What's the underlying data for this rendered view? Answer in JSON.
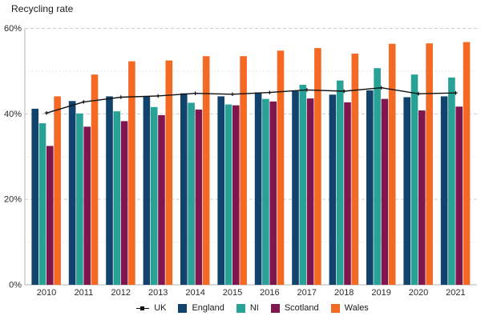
{
  "title": "Recycling rate",
  "chart_data": {
    "type": "bar",
    "title": "Recycling rate",
    "subtitle": "",
    "xlabel": "",
    "ylabel": "Recycling rate",
    "categories": [
      "2010",
      "2011",
      "2012",
      "2013",
      "2014",
      "2015",
      "2016",
      "2017",
      "2018",
      "2019",
      "2020",
      "2021"
    ],
    "series": [
      {
        "name": "England",
        "color": "#12436D",
        "values": [
          41.2,
          43.0,
          44.1,
          44.1,
          44.8,
          44.1,
          45.0,
          45.3,
          44.5,
          45.5,
          43.9,
          44.1
        ]
      },
      {
        "name": "NI",
        "color": "#28A197",
        "values": [
          37.8,
          40.1,
          40.6,
          41.6,
          42.6,
          42.2,
          43.5,
          46.8,
          47.8,
          50.7,
          49.2,
          48.5
        ]
      },
      {
        "name": "Scotland",
        "color": "#801650",
        "values": [
          32.5,
          37.0,
          38.3,
          39.7,
          41.0,
          42.0,
          42.9,
          43.6,
          42.7,
          43.5,
          40.8,
          41.7
        ]
      },
      {
        "name": "Wales",
        "color": "#F46A25",
        "values": [
          44.1,
          49.2,
          52.3,
          52.5,
          53.5,
          53.5,
          54.8,
          55.4,
          54.1,
          56.4,
          56.5,
          56.8
        ]
      }
    ],
    "line_series": {
      "name": "UK",
      "color": "#111111",
      "values": [
        40.2,
        42.8,
        43.9,
        44.2,
        44.8,
        44.6,
        45.0,
        45.6,
        45.3,
        46.1,
        44.7,
        44.9
      ]
    },
    "ylim": [
      0,
      60
    ],
    "yticks_major": {
      "values": [
        0,
        20,
        40,
        60
      ],
      "labels": [
        "0%",
        "20%",
        "40%",
        "60%"
      ]
    },
    "yticks_minor": [
      10,
      30,
      50
    ],
    "grid": "horizontal only; dashed major lines, dotted minor lines, solid baseline",
    "legend_position": "bottom center",
    "legend": {
      "items": [
        {
          "label": "UK",
          "type": "line",
          "color": "#111111"
        },
        {
          "label": "England",
          "type": "square",
          "color": "#12436D"
        },
        {
          "label": "NI",
          "type": "square",
          "color": "#28A197"
        },
        {
          "label": "Scotland",
          "type": "square",
          "color": "#801650"
        },
        {
          "label": "Wales",
          "type": "square",
          "color": "#F46A25"
        }
      ]
    }
  },
  "colors": {
    "background": "#ffffff",
    "axis_line": "#b3b3b3",
    "grid_major": "#cccccc",
    "grid_minor": "#e0e0e0",
    "tick_text": "#2b2b2b",
    "title_text": "#1a1a1a"
  }
}
